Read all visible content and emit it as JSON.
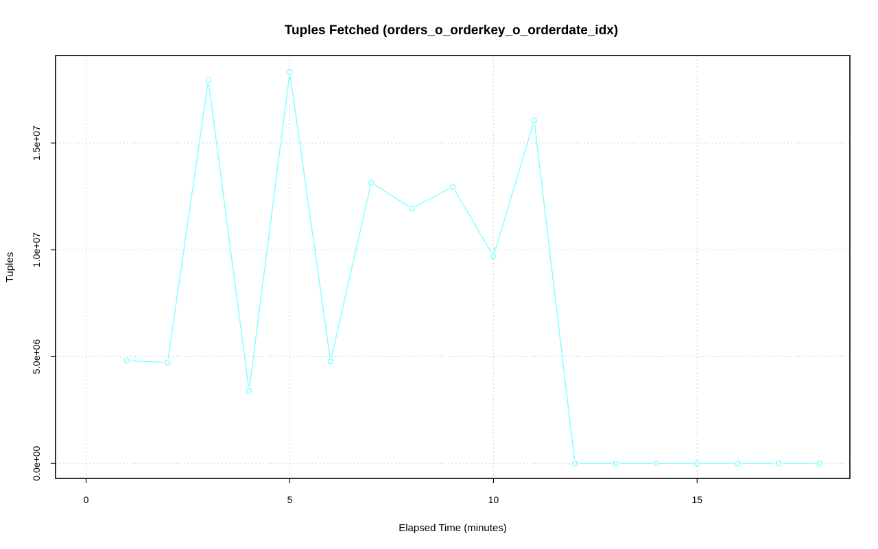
{
  "chart_data": {
    "type": "line",
    "title": "Tuples Fetched (orders_o_orderkey_o_orderdate_idx)",
    "xlabel": "Elapsed Time (minutes)",
    "ylabel": "Tuples",
    "xlim": [
      -0.75,
      18.75
    ],
    "ylim": [
      -700000,
      19100000
    ],
    "xticks": [
      0,
      5,
      10,
      15
    ],
    "xtick_labels": [
      "0",
      "5",
      "10",
      "15"
    ],
    "yticks": [
      0,
      5000000,
      10000000,
      15000000
    ],
    "ytick_labels": [
      "0.0e+00",
      "5.0e+06",
      "1.0e+07",
      "1.5e+07"
    ],
    "grid": true,
    "color": "#7fffff",
    "x": [
      1,
      2,
      3,
      4,
      5,
      6,
      7,
      8,
      9,
      10,
      11,
      12,
      13,
      14,
      15,
      16,
      17,
      18
    ],
    "values": [
      4820000,
      4720000,
      17950000,
      3400000,
      18330000,
      4780000,
      13150000,
      11940000,
      12950000,
      9700000,
      16060000,
      0,
      0,
      0,
      0,
      0,
      0,
      0
    ]
  }
}
